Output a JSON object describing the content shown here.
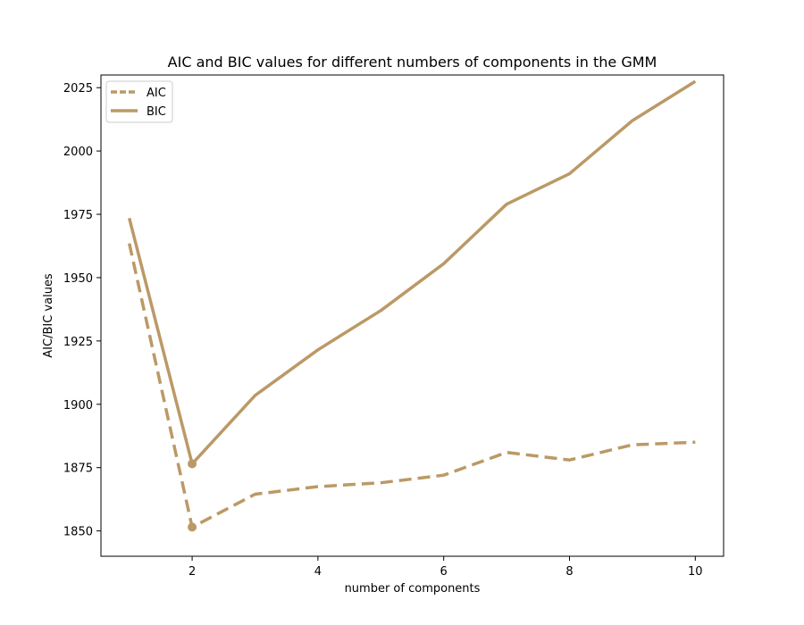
{
  "chart_data": {
    "type": "line",
    "title": "AIC and BIC values for different numbers of components in the GMM",
    "xlabel": "number of components",
    "ylabel": "AIC/BIC values",
    "x": [
      1,
      2,
      3,
      4,
      5,
      6,
      7,
      8,
      9,
      10
    ],
    "xlim": [
      0.55,
      10.45
    ],
    "ylim": [
      1840,
      2030
    ],
    "xticks": [
      2,
      4,
      6,
      8,
      10
    ],
    "yticks": [
      1850,
      1875,
      1900,
      1925,
      1950,
      1975,
      2000,
      2025
    ],
    "grid": false,
    "legend_position": "top-left",
    "series": [
      {
        "name": "AIC",
        "style": "dashed",
        "color": "#bb9966",
        "values": [
          1963.5,
          1851.5,
          1864.5,
          1867.5,
          1869,
          1872,
          1881,
          1878,
          1884,
          1885
        ],
        "highlight": {
          "x": 2,
          "y": 1851.5
        }
      },
      {
        "name": "BIC",
        "style": "solid",
        "color": "#bb9966",
        "values": [
          1973.5,
          1876.5,
          1903.5,
          1921.5,
          1937,
          1955.5,
          1979,
          1991,
          2012,
          2027.5
        ],
        "highlight": {
          "x": 2,
          "y": 1876.5
        }
      }
    ]
  }
}
